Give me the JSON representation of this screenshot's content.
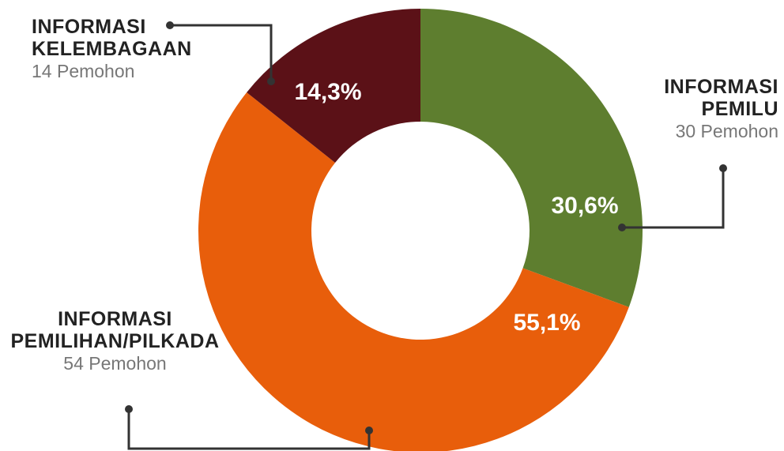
{
  "chart_data": {
    "type": "donut",
    "categories": [
      "INFORMASI PEMILU",
      "INFORMASI PEMILIHAN/PILKADA",
      "INFORMASI KELEMBAGAAN"
    ],
    "values": [
      30.6,
      55.1,
      14.3
    ],
    "value_labels": [
      "30,6%",
      "55,1%",
      "14,3%"
    ],
    "pemohon": [
      "30 Pemohon",
      "54 Pemohon",
      "14 Pemohon"
    ],
    "colors": [
      "#5e7e2f",
      "#e85e0b",
      "#5b1117"
    ]
  }
}
